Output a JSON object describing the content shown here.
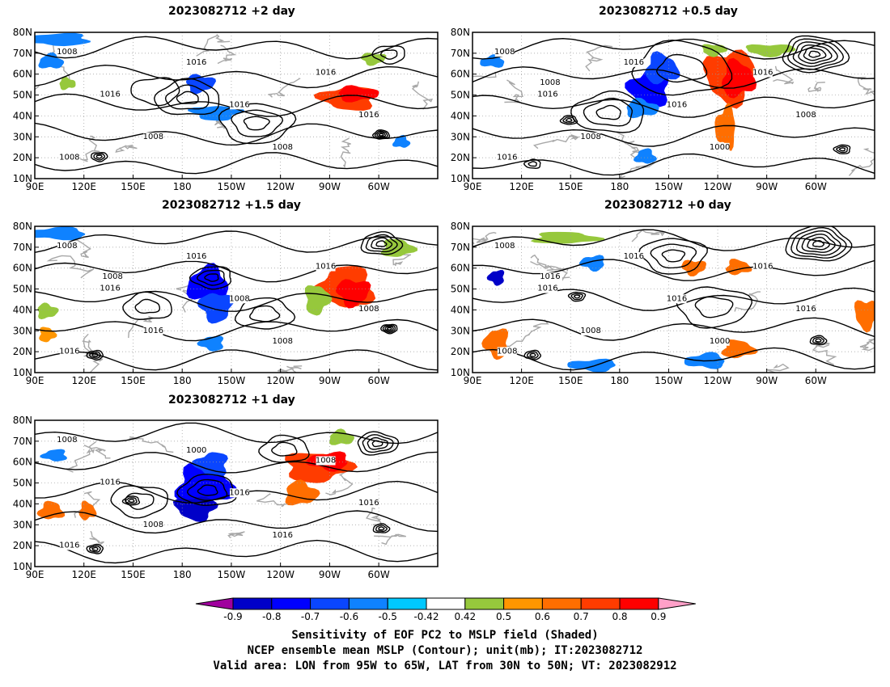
{
  "panels": [
    {
      "id": "p2",
      "title": "2023082712 +2 day",
      "xticks": [
        "90E",
        "120E",
        "150E",
        "180",
        "150W",
        "120W",
        "90W",
        "60W"
      ],
      "yticks": [
        "80N",
        "70N",
        "60N",
        "50N",
        "40N",
        "30N",
        "20N",
        "10N"
      ],
      "contour_labels": [
        "1008",
        "1016",
        "1008",
        "1016",
        "1016",
        "1008",
        "1016",
        "1016",
        "1008"
      ]
    },
    {
      "id": "p05",
      "title": "2023082712 +0.5 day",
      "xticks": [
        "90E",
        "120E",
        "150E",
        "180",
        "150W",
        "120W",
        "90W",
        "60W"
      ],
      "yticks": [
        "80N",
        "70N",
        "60N",
        "50N",
        "40N",
        "30N",
        "20N",
        "10N"
      ],
      "contour_labels": [
        "1008",
        "1016",
        "1008",
        "1016",
        "1016",
        "1000",
        "1016",
        "1008",
        "1016",
        "1008"
      ]
    },
    {
      "id": "p15",
      "title": "2023082712 +1.5 day",
      "xticks": [
        "90E",
        "120E",
        "150E",
        "180",
        "150W",
        "120W",
        "90W",
        "60W"
      ],
      "yticks": [
        "80N",
        "70N",
        "60N",
        "50N",
        "40N",
        "30N",
        "20N",
        "10N"
      ],
      "contour_labels": [
        "1008",
        "1016",
        "1016",
        "1016",
        "1008",
        "1008",
        "1016",
        "1008",
        "1016",
        "1008"
      ]
    },
    {
      "id": "p0",
      "title": "2023082712 +0 day",
      "xticks": [
        "90E",
        "120E",
        "150E",
        "180",
        "150W",
        "120W",
        "90W",
        "60W"
      ],
      "yticks": [
        "80N",
        "70N",
        "60N",
        "50N",
        "40N",
        "30N",
        "20N",
        "10N"
      ],
      "contour_labels": [
        "1008",
        "1016",
        "1008",
        "1016",
        "1016",
        "1000",
        "1016",
        "1016",
        "1008",
        "1016"
      ]
    },
    {
      "id": "p1",
      "title": "2023082712 +1 day",
      "xticks": [
        "90E",
        "120E",
        "150E",
        "180",
        "150W",
        "120W",
        "90W",
        "60W"
      ],
      "yticks": [
        "80N",
        "70N",
        "60N",
        "50N",
        "40N",
        "30N",
        "20N",
        "10N"
      ],
      "contour_labels": [
        "1008",
        "1016",
        "1008",
        "1000",
        "1016",
        "1016",
        "1008",
        "1016",
        "1016"
      ]
    }
  ],
  "colorbar": {
    "ticks": [
      "-0.9",
      "-0.8",
      "-0.7",
      "-0.6",
      "-0.5",
      "-0.42",
      "0.42",
      "0.5",
      "0.6",
      "0.7",
      "0.8",
      "0.9"
    ],
    "colors": [
      "#a0009e",
      "#0000c8",
      "#0000ff",
      "#0a46ff",
      "#0f82ff",
      "#00c8ff",
      "#ffffff",
      "#96c83c",
      "#ff9600",
      "#ff6e00",
      "#ff3c00",
      "#ff0000",
      "#ffa0c8"
    ]
  },
  "caption": {
    "line1": "Sensitivity of EOF PC2 to MSLP field (Shaded)",
    "line2": "NCEP ensemble mean MSLP (Contour); unit(mb); IT:2023082712",
    "line3": "Valid area: LON from 95W to 65W, LAT from 30N to 50N; VT: 2023082912"
  }
}
